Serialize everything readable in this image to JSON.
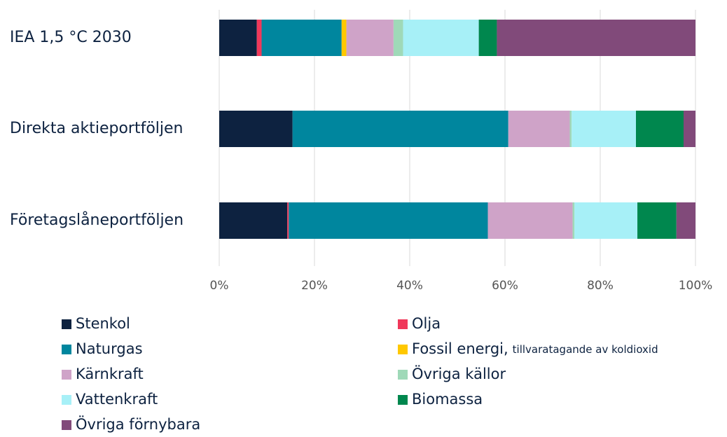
{
  "chart_data": {
    "type": "stacked_barh",
    "categories": [
      "IEA 1,5 °C  2030",
      "Direkta aktieportföljen",
      "Företagslåneportföljen"
    ],
    "series": [
      {
        "name": "Stenkol",
        "color": "#0d2240",
        "values": [
          7.9,
          15.4,
          14.3
        ]
      },
      {
        "name": "Olja",
        "color": "#f0385a",
        "values": [
          1.0,
          0,
          0.3
        ]
      },
      {
        "name": "Naturgas",
        "color": "#00869e",
        "values": [
          16.8,
          45.3,
          41.8
        ]
      },
      {
        "name": "Fossil energi,",
        "note": "tillvaratagande av koldioxid",
        "color": "#ffc800",
        "values": [
          1.0,
          0,
          0
        ]
      },
      {
        "name": "Kärnkraft",
        "color": "#cfa3c8",
        "values": [
          9.9,
          12.9,
          17.8
        ]
      },
      {
        "name": "Övriga källor",
        "color": "#9fd9b8",
        "values": [
          2.0,
          0.4,
          0.4
        ]
      },
      {
        "name": "Vattenkraft",
        "color": "#a7f0f7",
        "values": [
          15.9,
          13.5,
          13.2
        ]
      },
      {
        "name": "Biomassa",
        "color": "#00874e",
        "values": [
          3.8,
          10.0,
          8.2
        ]
      },
      {
        "name": "Övriga förnybara",
        "color": "#814a7a",
        "values": [
          41.7,
          2.5,
          4.0
        ]
      }
    ],
    "xlim": [
      0,
      100
    ],
    "xticks": [
      {
        "value": 0,
        "label": "0%"
      },
      {
        "value": 20,
        "label": "20%"
      },
      {
        "value": 40,
        "label": "40%"
      },
      {
        "value": 60,
        "label": "60%"
      },
      {
        "value": 80,
        "label": "80%"
      },
      {
        "value": 100,
        "label": "100%"
      }
    ],
    "grid": true
  }
}
